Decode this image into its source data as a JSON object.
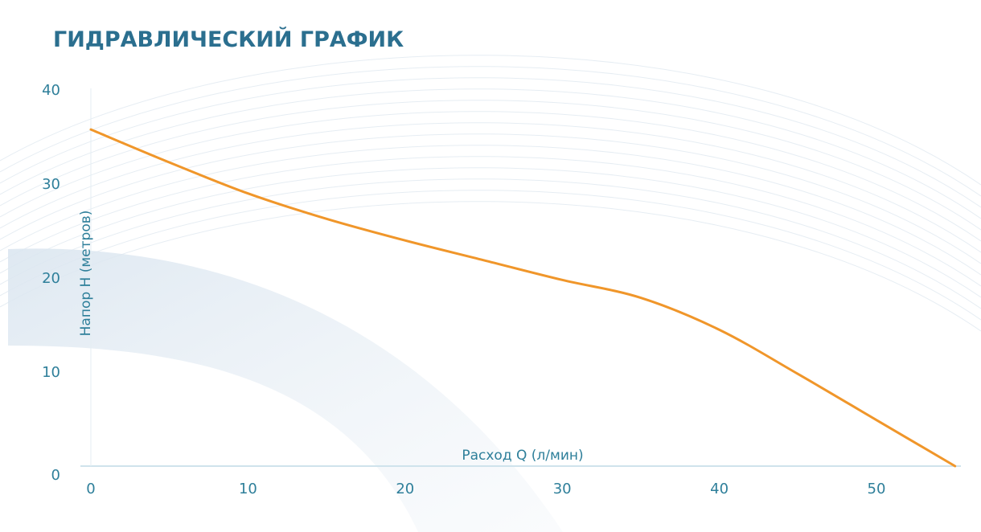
{
  "chart_data": {
    "type": "line",
    "title": "ГИДРАВЛИЧЕСКИЙ ГРАФИК",
    "xlabel": "Расход Q (л/мин)",
    "ylabel": "Напор H (метров)",
    "xlim": [
      0,
      55
    ],
    "ylim": [
      0,
      40
    ],
    "x_ticks": [
      0,
      10,
      20,
      30,
      40,
      50
    ],
    "y_ticks": [
      0,
      10,
      20,
      30,
      40
    ],
    "grid": false,
    "series": [
      {
        "x": [
          0,
          5,
          10,
          15,
          20,
          25,
          30,
          35,
          40,
          45,
          50,
          55
        ],
        "y": [
          35.8,
          32.3,
          29.0,
          26.3,
          24.0,
          21.9,
          19.8,
          17.9,
          14.5,
          9.8,
          4.9,
          0
        ],
        "color": "#f0962a"
      }
    ],
    "colors": {
      "title": "#2b6f8f",
      "labels": "#2e7f9a",
      "axis": "#cfe3ec",
      "curve": "#f0962a"
    }
  }
}
